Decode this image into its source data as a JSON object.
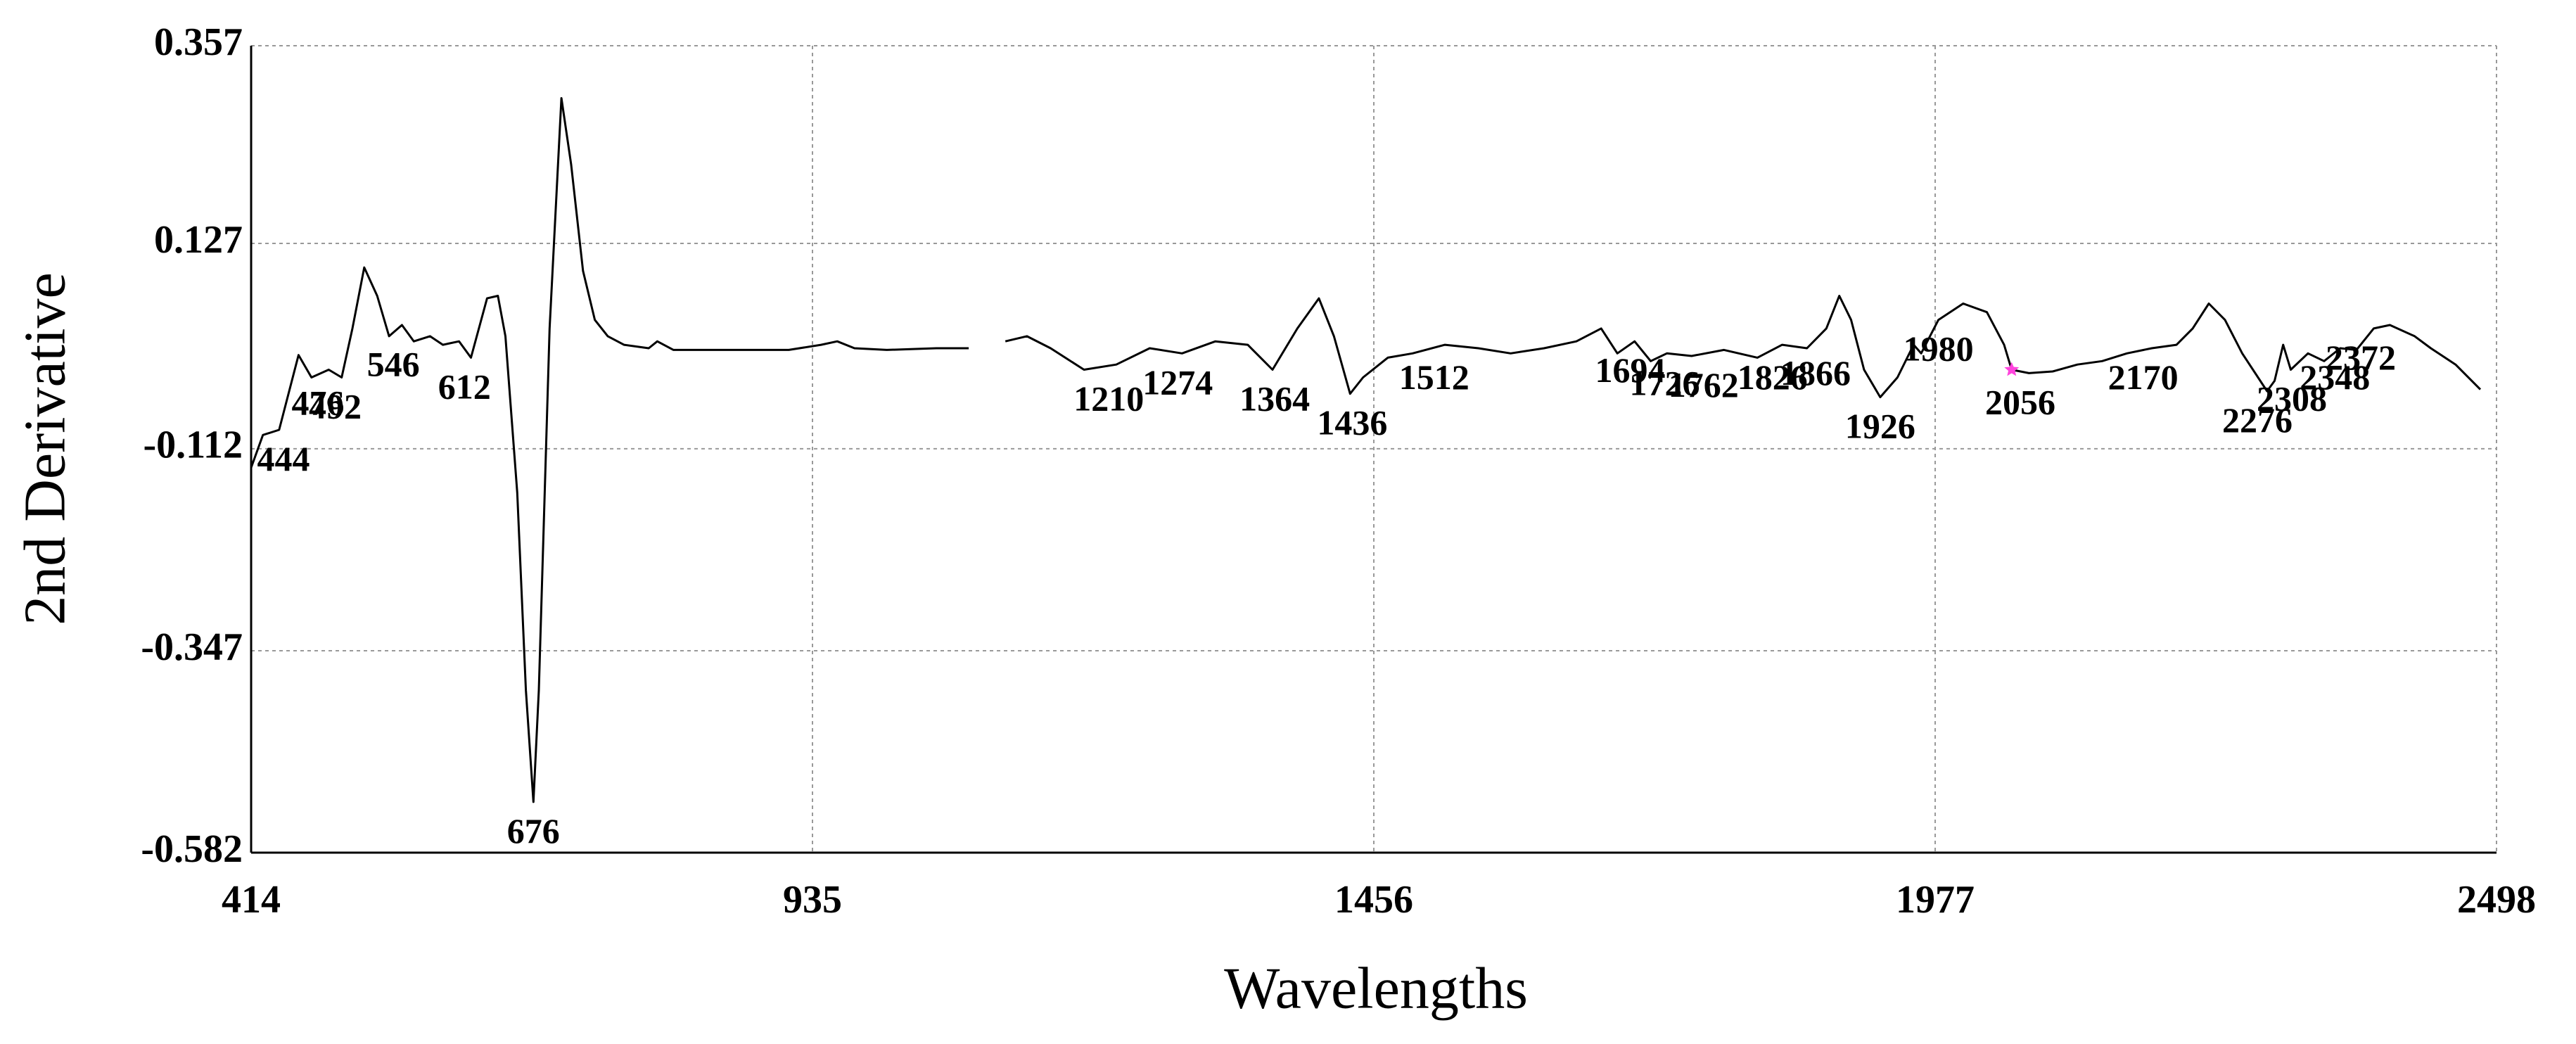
{
  "chart_data": {
    "type": "line",
    "xlabel": "Wavelengths",
    "ylabel": "2nd Derivative",
    "xlim": [
      414,
      2498
    ],
    "xticks": [
      414,
      935,
      1456,
      1977,
      2498
    ],
    "ylim": [
      -0.582,
      0.357
    ],
    "yticks": [
      -0.582,
      -0.347,
      -0.112,
      0.127,
      0.357
    ],
    "grid": true,
    "series": [
      {
        "color": "#000000",
        "x": [
          414,
          425,
          440,
          458,
          470,
          486,
          498,
          508,
          519,
          531,
          542,
          554,
          565,
          580,
          592,
          607,
          618,
          633,
          643,
          650,
          661,
          669,
          676,
          681,
          691,
          702,
          711,
          722,
          733,
          745,
          760,
          783,
          791,
          806,
          867,
          913,
          943,
          958,
          974,
          1004,
          1050,
          1080,
          1097,
          1114,
          1134,
          1156,
          1187,
          1217,
          1248,
          1278,
          1309,
          1339,
          1362,
          1385,
          1405,
          1419,
          1434,
          1446,
          1469,
          1492,
          1522,
          1553,
          1583,
          1614,
          1644,
          1667,
          1682,
          1698,
          1713,
          1728,
          1751,
          1781,
          1812,
          1835,
          1858,
          1876,
          1888,
          1899,
          1911,
          1926,
          1942,
          1957,
          1964,
          1980,
          2003,
          2025,
          2041,
          2048,
          2064,
          2086,
          2109,
          2132,
          2155,
          2178,
          2201,
          2216,
          2231,
          2246,
          2262,
          2285,
          2292,
          2300,
          2307,
          2323,
          2338,
          2353,
          2368,
          2384,
          2399,
          2422,
          2437,
          2460,
          2483
        ],
        "values": [
          -0.134,
          -0.096,
          -0.09,
          -0.003,
          -0.029,
          -0.02,
          -0.029,
          0.028,
          0.099,
          0.066,
          0.019,
          0.032,
          0.013,
          0.019,
          0.009,
          0.013,
          -0.006,
          0.063,
          0.066,
          0.019,
          -0.163,
          -0.393,
          -0.523,
          -0.393,
          0.028,
          0.296,
          0.219,
          0.095,
          0.038,
          0.019,
          0.009,
          0.005,
          0.013,
          0.003,
          0.003,
          0.003,
          0.009,
          0.013,
          0.005,
          0.003,
          0.005,
          0.005,
          null,
          0.013,
          0.019,
          0.005,
          -0.02,
          -0.014,
          0.005,
          -0.001,
          0.013,
          0.009,
          -0.02,
          0.028,
          0.063,
          0.019,
          -0.048,
          -0.029,
          -0.006,
          -0.001,
          0.009,
          0.005,
          -0.001,
          0.005,
          0.013,
          0.028,
          -0.001,
          0.013,
          -0.01,
          -0.001,
          -0.004,
          0.003,
          -0.006,
          0.009,
          0.005,
          0.028,
          0.066,
          0.038,
          -0.02,
          -0.052,
          -0.029,
          0.009,
          -0.001,
          0.038,
          0.057,
          0.047,
          0.009,
          -0.02,
          -0.024,
          -0.022,
          -0.014,
          -0.01,
          -0.001,
          0.005,
          0.009,
          0.028,
          0.057,
          0.038,
          -0.001,
          -0.045,
          -0.033,
          0.009,
          -0.02,
          -0.001,
          -0.01,
          0.005,
          0.003,
          0.028,
          0.032,
          0.019,
          0.005,
          -0.014,
          -0.043
        ]
      }
    ],
    "marker": {
      "x": 2048,
      "y": -0.02,
      "color": "#ff44dd"
    },
    "annotations": [
      {
        "x": 444,
        "y": -0.09
      },
      {
        "x": 476,
        "y": -0.025
      },
      {
        "x": 492,
        "y": -0.029
      },
      {
        "x": 546,
        "y": 0.02
      },
      {
        "x": 612,
        "y": -0.006
      },
      {
        "x": 676,
        "y": -0.523
      },
      {
        "x": 1210,
        "y": -0.02
      },
      {
        "x": 1274,
        "y": -0.001
      },
      {
        "x": 1364,
        "y": -0.02
      },
      {
        "x": 1436,
        "y": -0.048
      },
      {
        "x": 1512,
        "y": 0.005
      },
      {
        "x": 1694,
        "y": 0.013
      },
      {
        "x": 1726,
        "y": -0.002
      },
      {
        "x": 1762,
        "y": -0.004
      },
      {
        "x": 1826,
        "y": 0.005
      },
      {
        "x": 1866,
        "y": 0.01
      },
      {
        "x": 1926,
        "y": -0.052
      },
      {
        "x": 1980,
        "y": 0.038
      },
      {
        "x": 2056,
        "y": -0.024
      },
      {
        "x": 2170,
        "y": 0.005
      },
      {
        "x": 2276,
        "y": -0.045
      },
      {
        "x": 2308,
        "y": -0.02
      },
      {
        "x": 2348,
        "y": 0.005
      },
      {
        "x": 2372,
        "y": 0.028
      }
    ]
  }
}
